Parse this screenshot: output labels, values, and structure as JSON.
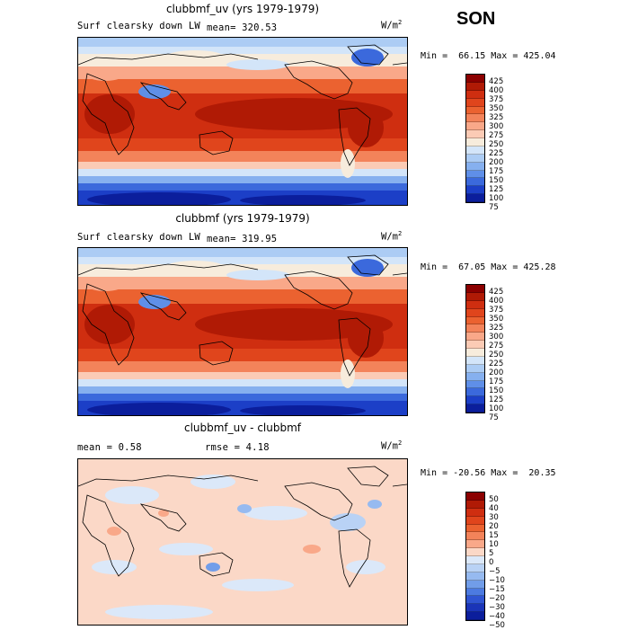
{
  "season": "SON",
  "units_base": "W/m",
  "units_exp": "2",
  "panels": [
    {
      "title": "clubbmf_uv (yrs 1979-1979)",
      "field": "Surf clearsky down LW",
      "mean_text": "mean= 320.53",
      "stats_text": "Min =  66.15 Max = 425.04",
      "kind": "abs"
    },
    {
      "title": "clubbmf (yrs 1979-1979)",
      "field": "Surf clearsky down LW",
      "mean_text": "mean= 319.95",
      "stats_text": "Min =  67.05 Max = 425.28",
      "kind": "abs"
    },
    {
      "title": "clubbmf_uv - clubbmf",
      "mean_text": "mean =   0.58",
      "rmse_text": "rmse =   4.18",
      "stats_text": "Min = -20.56 Max =  20.35",
      "kind": "diff"
    }
  ],
  "colorbars": {
    "abs": {
      "labels": [
        "425",
        "400",
        "375",
        "350",
        "325",
        "300",
        "275",
        "250",
        "225",
        "200",
        "175",
        "150",
        "125",
        "100",
        "75"
      ],
      "colors": [
        "#8b0000",
        "#b01a05",
        "#cf2e10",
        "#e0451c",
        "#eb6230",
        "#f3835a",
        "#f9a889",
        "#fbcbb5",
        "#f7ecdc",
        "#d3e5f9",
        "#acccf4",
        "#86b0ef",
        "#5f8fe8",
        "#3b69dc",
        "#1c3fc7",
        "#0b1e9c"
      ]
    },
    "diff": {
      "labels": [
        "50",
        "40",
        "30",
        "20",
        "15",
        "10",
        "5",
        "0",
        "−5",
        "−10",
        "−15",
        "−20",
        "−30",
        "−40",
        "−50"
      ],
      "colors": [
        "#8b0000",
        "#b01a05",
        "#cf2e10",
        "#e0451c",
        "#eb6230",
        "#f3835a",
        "#f9a889",
        "#fbd8c7",
        "#dbe8f9",
        "#b9d2f5",
        "#96baf0",
        "#719de9",
        "#4c7ae1",
        "#2f54d2",
        "#1a34b8",
        "#0b1e9c"
      ]
    }
  }
}
